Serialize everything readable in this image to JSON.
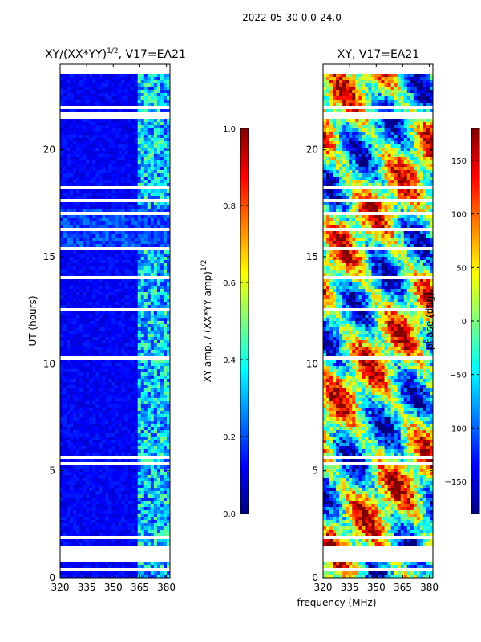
{
  "figure": {
    "suptitle": "2022-05-30 0.0-24.0",
    "shared_xlabel": "frequency (MHz)"
  },
  "colors": {
    "jet": [
      "#00007f",
      "#0000ff",
      "#007fff",
      "#00ffff",
      "#7fff7f",
      "#ffff00",
      "#ff7f00",
      "#ff0000",
      "#7f0000"
    ],
    "gap": "#ffffff"
  },
  "chart_data": [
    {
      "type": "heatmap",
      "title_main": "XY/(XX*YY)",
      "title_sup": "1/2",
      "title_tail": ", V17=EA21",
      "xlabel": "frequency (MHz)",
      "ylabel": "UT (hours)",
      "xlim": [
        320,
        382
      ],
      "ylim": [
        0,
        24
      ],
      "xticks": [
        320,
        335,
        350,
        365,
        380
      ],
      "yticks": [
        0,
        5,
        10,
        15,
        20
      ],
      "colorbar": {
        "label_main": "XY amp. / (XX*YY amp)",
        "label_sup": "1/2",
        "range": [
          0.0,
          1.0
        ],
        "ticks": [
          "0.0",
          "0.2",
          "0.4",
          "0.6",
          "0.8",
          "1.0"
        ]
      }
    },
    {
      "type": "heatmap",
      "title_main": "XY, V17=EA21",
      "title_sup": "",
      "title_tail": "",
      "xlabel": "frequency (MHz)",
      "ylabel": "",
      "xlim": [
        320,
        382
      ],
      "ylim": [
        0,
        24
      ],
      "xticks": [
        320,
        335,
        350,
        365,
        380
      ],
      "yticks": [
        0,
        5,
        10,
        15,
        20
      ],
      "colorbar": {
        "label_main": "phase (deg)",
        "label_sup": "",
        "range": [
          -180,
          180
        ],
        "ticks": [
          "−150",
          "−100",
          "−50",
          "0",
          "50",
          "100",
          "150"
        ]
      }
    }
  ]
}
